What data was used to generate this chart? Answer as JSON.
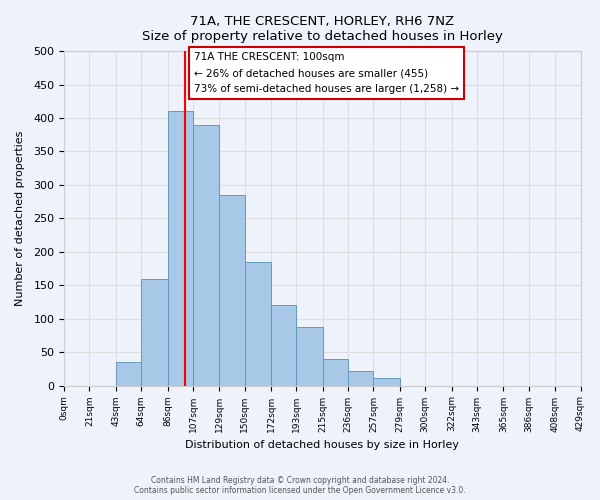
{
  "title": "71A, THE CRESCENT, HORLEY, RH6 7NZ",
  "subtitle": "Size of property relative to detached houses in Horley",
  "xlabel": "Distribution of detached houses by size in Horley",
  "ylabel": "Number of detached properties",
  "bin_edges": [
    0,
    21,
    43,
    64,
    86,
    107,
    129,
    150,
    172,
    193,
    215,
    236,
    257,
    279,
    300,
    322,
    343,
    365,
    386,
    408,
    429
  ],
  "bin_counts": [
    0,
    0,
    35,
    160,
    410,
    390,
    285,
    185,
    120,
    87,
    40,
    22,
    12,
    0,
    0,
    0,
    0,
    0,
    0,
    0
  ],
  "bar_color": "#a8c8e8",
  "bar_edge_color": "#6699bb",
  "property_line_x": 100,
  "property_line_color": "red",
  "annotation_title": "71A THE CRESCENT: 100sqm",
  "annotation_line1": "← 26% of detached houses are smaller (455)",
  "annotation_line2": "73% of semi-detached houses are larger (1,258) →",
  "annotation_box_color": "white",
  "annotation_box_edge": "#cc0000",
  "ylim": [
    0,
    500
  ],
  "yticks": [
    0,
    50,
    100,
    150,
    200,
    250,
    300,
    350,
    400,
    450,
    500
  ],
  "tick_labels": [
    "0sqm",
    "21sqm",
    "43sqm",
    "64sqm",
    "86sqm",
    "107sqm",
    "129sqm",
    "150sqm",
    "172sqm",
    "193sqm",
    "215sqm",
    "236sqm",
    "257sqm",
    "279sqm",
    "300sqm",
    "322sqm",
    "343sqm",
    "365sqm",
    "386sqm",
    "408sqm",
    "429sqm"
  ],
  "footer_line1": "Contains HM Land Registry data © Crown copyright and database right 2024.",
  "footer_line2": "Contains public sector information licensed under the Open Government Licence v3.0.",
  "grid_color": "#dddddd",
  "background_color": "#eef2fb"
}
